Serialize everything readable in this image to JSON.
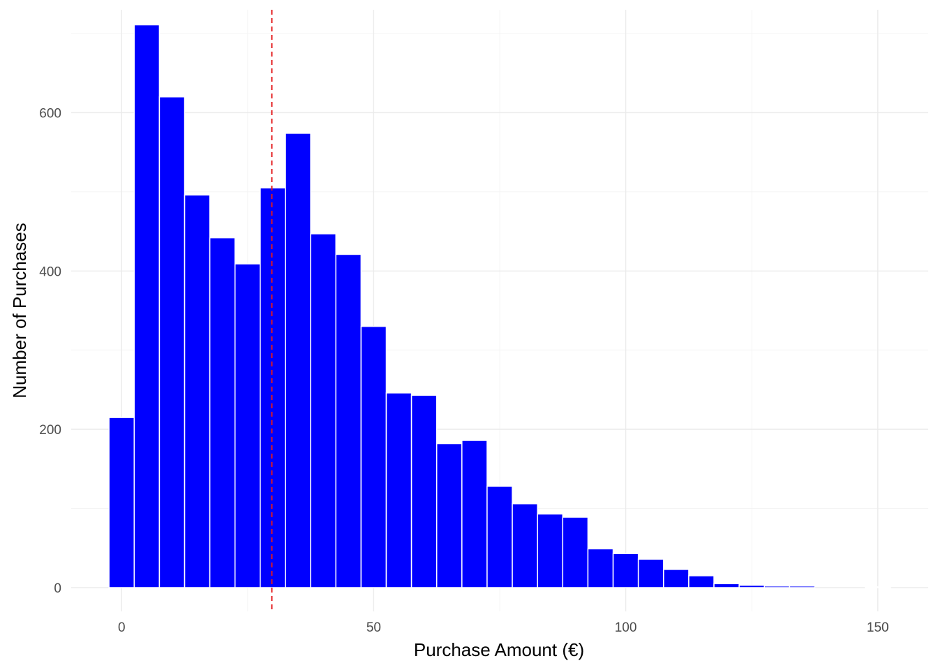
{
  "chart_data": {
    "type": "bar",
    "subtype": "histogram",
    "xlabel": "Purchase Amount (€)",
    "ylabel": "Number of Purchases",
    "xlim": [
      -10,
      160
    ],
    "ylim": [
      -30,
      730
    ],
    "x_ticks": [
      0,
      50,
      100,
      150
    ],
    "y_ticks": [
      0,
      200,
      400,
      600
    ],
    "grid": true,
    "bin_width": 5,
    "bins": [
      {
        "center": 0,
        "value": 215
      },
      {
        "center": 5,
        "value": 711
      },
      {
        "center": 10,
        "value": 620
      },
      {
        "center": 15,
        "value": 496
      },
      {
        "center": 20,
        "value": 442
      },
      {
        "center": 25,
        "value": 409
      },
      {
        "center": 30,
        "value": 505
      },
      {
        "center": 35,
        "value": 574
      },
      {
        "center": 40,
        "value": 447
      },
      {
        "center": 45,
        "value": 421
      },
      {
        "center": 50,
        "value": 330
      },
      {
        "center": 55,
        "value": 246
      },
      {
        "center": 60,
        "value": 243
      },
      {
        "center": 65,
        "value": 182
      },
      {
        "center": 70,
        "value": 186
      },
      {
        "center": 75,
        "value": 128
      },
      {
        "center": 80,
        "value": 106
      },
      {
        "center": 85,
        "value": 93
      },
      {
        "center": 90,
        "value": 89
      },
      {
        "center": 95,
        "value": 49
      },
      {
        "center": 100,
        "value": 43
      },
      {
        "center": 105,
        "value": 36
      },
      {
        "center": 110,
        "value": 23
      },
      {
        "center": 115,
        "value": 15
      },
      {
        "center": 120,
        "value": 5
      },
      {
        "center": 125,
        "value": 3
      },
      {
        "center": 130,
        "value": 2
      },
      {
        "center": 135,
        "value": 2
      },
      {
        "center": 140,
        "value": 0
      },
      {
        "center": 145,
        "value": 0
      },
      {
        "center": 150,
        "value": 1
      }
    ],
    "reference_line": {
      "x": 29.8,
      "style": "dashed",
      "color": "#e31a1c"
    },
    "bar_color": "#0000ff",
    "bar_edge_color": "#ffffff"
  }
}
